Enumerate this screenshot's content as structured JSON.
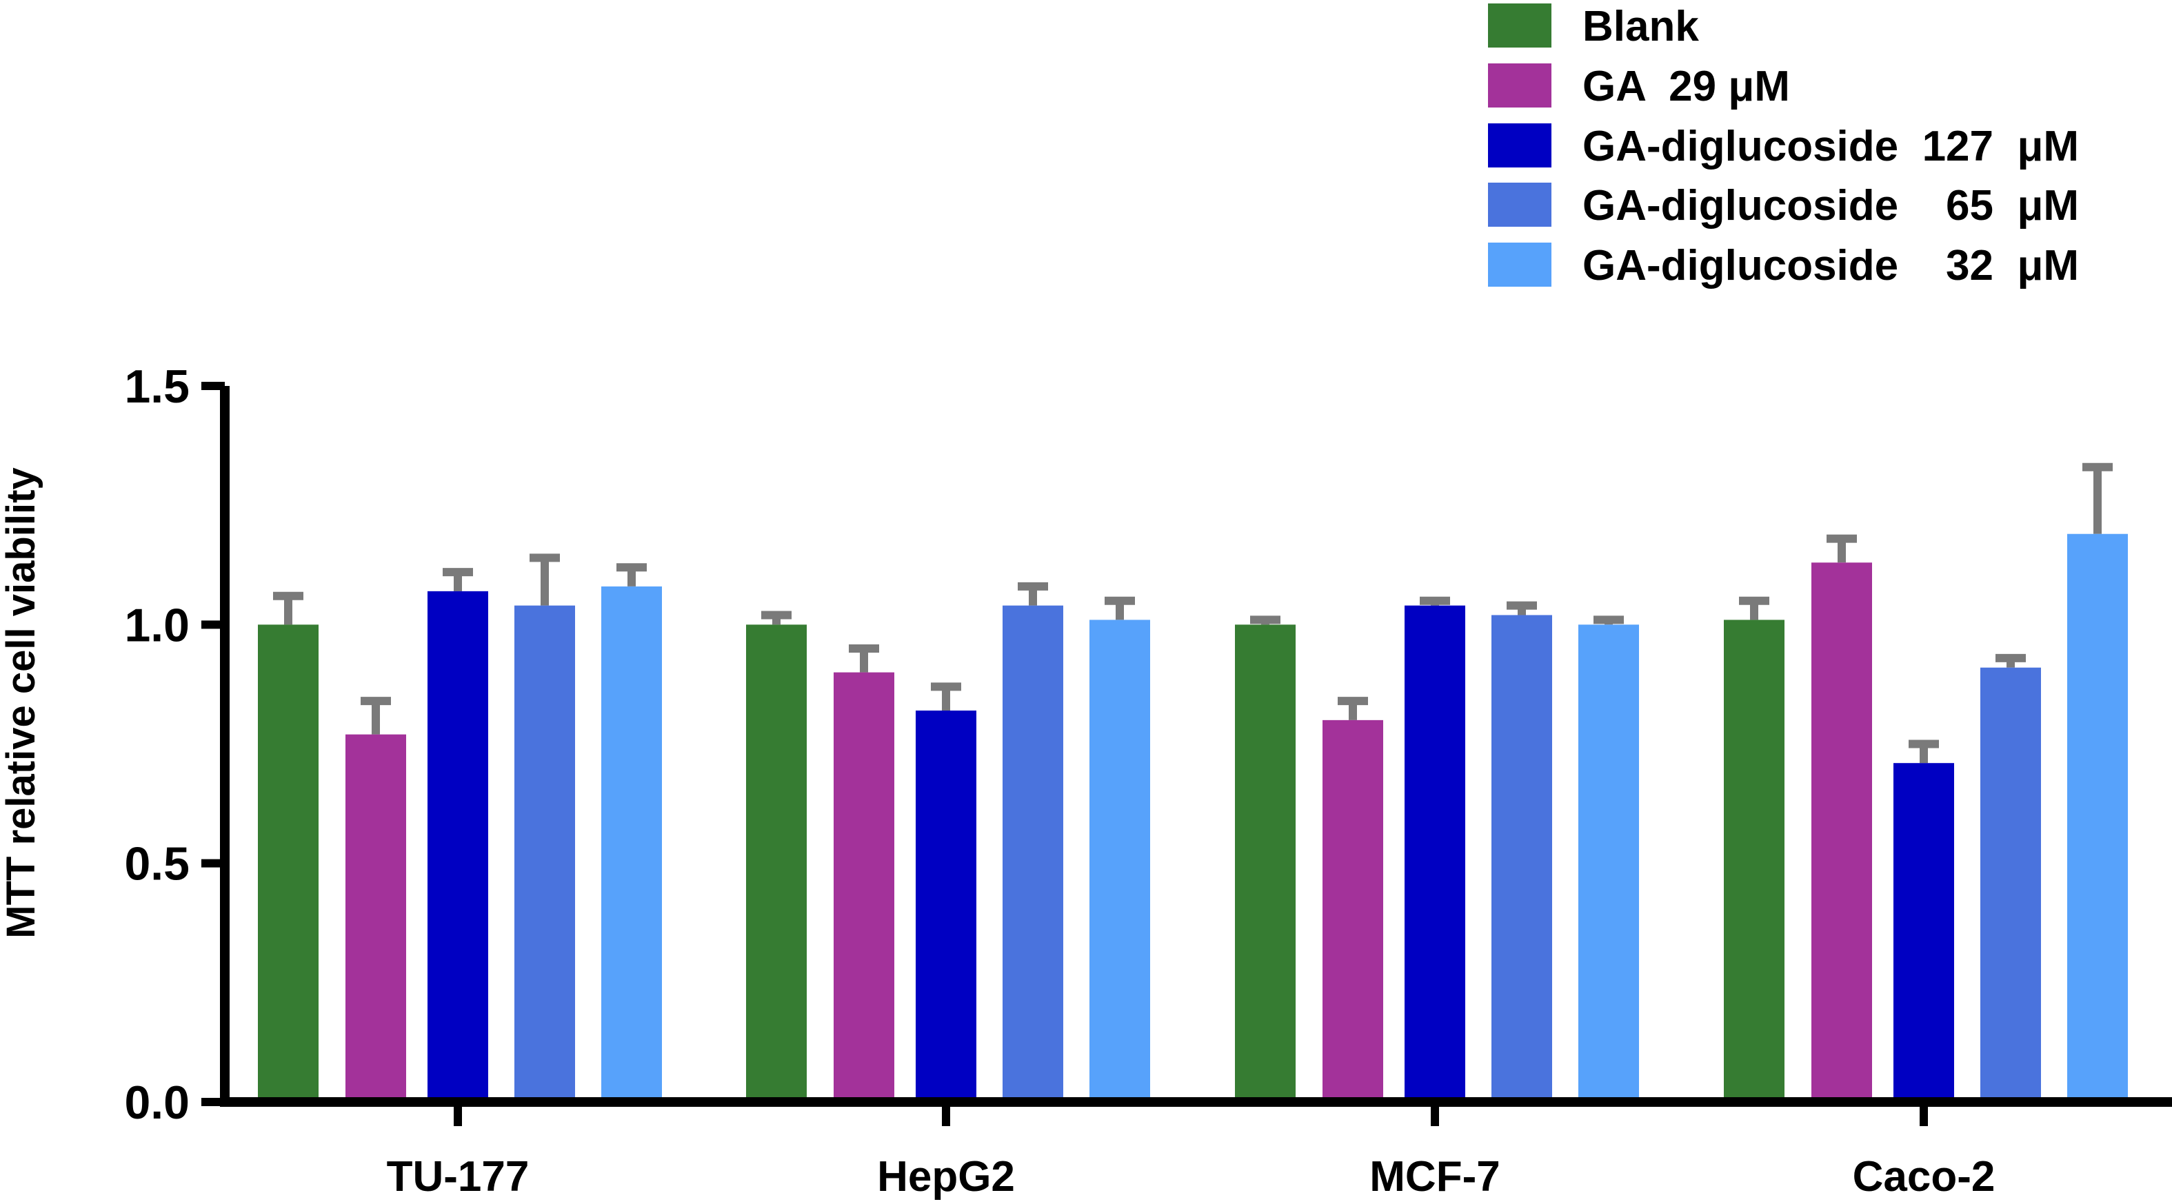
{
  "chart_data": {
    "type": "bar",
    "title": "",
    "xlabel": "",
    "ylabel": "MTT relative cell viability",
    "ylim": [
      0,
      1.5
    ],
    "yticks": [
      "0.0",
      "0.5",
      "1.0",
      "1.5"
    ],
    "grid": false,
    "legend_position": "top-right",
    "categories": [
      "TU-177",
      "HepG2",
      "MCF-7",
      "Caco-2"
    ],
    "series": [
      {
        "name": "Blank",
        "color": "#367c32",
        "values": [
          1.0,
          1.0,
          1.0,
          1.01
        ],
        "errors": [
          0.06,
          0.02,
          0.01,
          0.04
        ]
      },
      {
        "name": "GA  29 μM",
        "color": "#a3329a",
        "values": [
          0.77,
          0.9,
          0.8,
          1.13
        ],
        "errors": [
          0.07,
          0.05,
          0.04,
          0.05
        ]
      },
      {
        "name": "GA-diglucoside  127  μM",
        "color": "#0000c2",
        "values": [
          1.07,
          0.82,
          1.04,
          0.71
        ],
        "errors": [
          0.04,
          0.05,
          0.01,
          0.04
        ]
      },
      {
        "name": "GA-diglucoside    65  μM",
        "color": "#4a73dd",
        "values": [
          1.04,
          1.04,
          1.02,
          0.91
        ],
        "errors": [
          0.1,
          0.04,
          0.02,
          0.02
        ]
      },
      {
        "name": "GA-diglucoside    32  μM",
        "color": "#57a2fb",
        "values": [
          1.08,
          1.01,
          1.0,
          1.19
        ],
        "errors": [
          0.04,
          0.04,
          0.01,
          0.14
        ]
      }
    ]
  }
}
